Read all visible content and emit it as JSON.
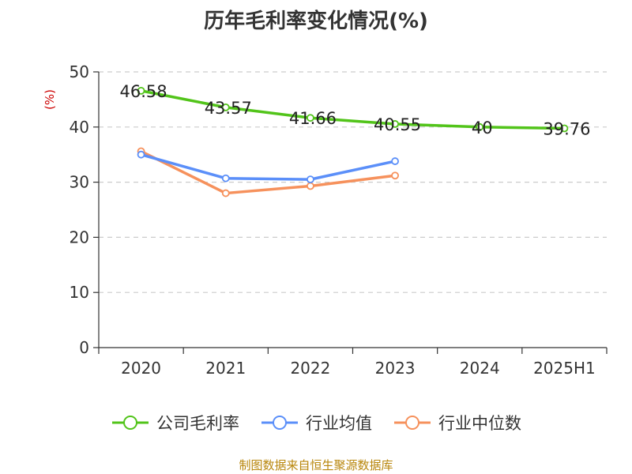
{
  "title": "历年毛利率变化情况(%)",
  "source_text": "制图数据来自恒生聚源数据库",
  "chart_data": {
    "type": "line",
    "title": "历年毛利率变化情况(%)",
    "ylabel": "(%)",
    "xlabel": "",
    "ylim": [
      0,
      50
    ],
    "yticks": [
      0,
      10,
      20,
      30,
      40,
      50
    ],
    "grid": true,
    "legend_position": "bottom",
    "categories": [
      "2020",
      "2021",
      "2022",
      "2023",
      "2024",
      "2025H1"
    ],
    "series": [
      {
        "name": "公司毛利率",
        "color": "#52c41a",
        "values": [
          46.58,
          43.57,
          41.66,
          40.55,
          40,
          39.76
        ],
        "labels": [
          "46.58",
          "43.57",
          "41.66",
          "40.55",
          "40",
          "39.76"
        ],
        "show_labels": true
      },
      {
        "name": "行业均值",
        "color": "#5b8ff9",
        "values": [
          35.0,
          30.7,
          30.5,
          33.8,
          null,
          null
        ],
        "show_labels": false
      },
      {
        "name": "行业中位数",
        "color": "#f6915c",
        "values": [
          35.6,
          28.0,
          29.3,
          31.2,
          null,
          null
        ],
        "show_labels": false
      }
    ]
  }
}
